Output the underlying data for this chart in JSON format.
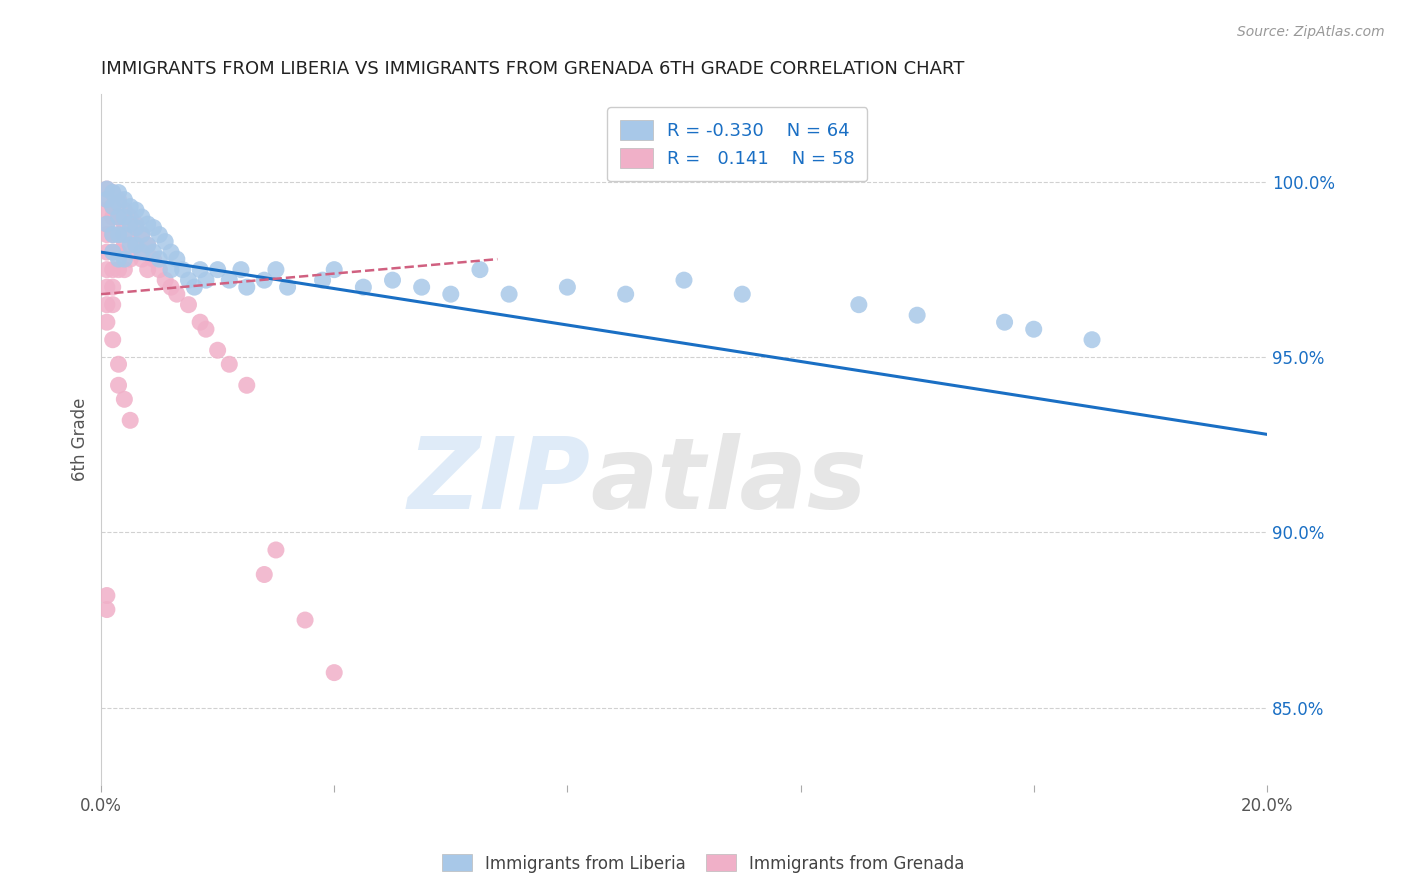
{
  "title": "IMMIGRANTS FROM LIBERIA VS IMMIGRANTS FROM GRENADA 6TH GRADE CORRELATION CHART",
  "source": "Source: ZipAtlas.com",
  "ylabel": "6th Grade",
  "ylabel_right_ticks": [
    "85.0%",
    "90.0%",
    "95.0%",
    "100.0%"
  ],
  "ylabel_right_vals": [
    0.85,
    0.9,
    0.95,
    1.0
  ],
  "legend_liberia": {
    "R": "-0.330",
    "N": "64",
    "color": "#a8c8e8"
  },
  "legend_grenada": {
    "R": "0.141",
    "N": "58",
    "color": "#f0b0c8"
  },
  "liberia_line_color": "#1a6fc4",
  "grenada_line_color": "#d06080",
  "watermark_zip": "ZIP",
  "watermark_atlas": "atlas",
  "background_color": "#ffffff",
  "grid_color": "#cccccc",
  "xlim": [
    0.0,
    0.2
  ],
  "ylim": [
    0.828,
    1.025
  ],
  "liberia_scatter_x": [
    0.001,
    0.001,
    0.001,
    0.002,
    0.002,
    0.002,
    0.002,
    0.003,
    0.003,
    0.003,
    0.003,
    0.003,
    0.004,
    0.004,
    0.004,
    0.004,
    0.005,
    0.005,
    0.005,
    0.006,
    0.006,
    0.006,
    0.007,
    0.007,
    0.007,
    0.008,
    0.008,
    0.009,
    0.009,
    0.01,
    0.01,
    0.011,
    0.012,
    0.012,
    0.013,
    0.014,
    0.015,
    0.016,
    0.017,
    0.018,
    0.02,
    0.022,
    0.024,
    0.025,
    0.028,
    0.03,
    0.032,
    0.038,
    0.04,
    0.045,
    0.05,
    0.055,
    0.06,
    0.065,
    0.07,
    0.08,
    0.09,
    0.1,
    0.11,
    0.13,
    0.14,
    0.155,
    0.16,
    0.17
  ],
  "liberia_scatter_y": [
    0.998,
    0.995,
    0.988,
    0.997,
    0.993,
    0.985,
    0.98,
    0.997,
    0.994,
    0.99,
    0.985,
    0.978,
    0.995,
    0.99,
    0.985,
    0.978,
    0.993,
    0.988,
    0.982,
    0.992,
    0.987,
    0.982,
    0.99,
    0.985,
    0.98,
    0.988,
    0.982,
    0.987,
    0.98,
    0.985,
    0.978,
    0.983,
    0.98,
    0.975,
    0.978,
    0.975,
    0.972,
    0.97,
    0.975,
    0.972,
    0.975,
    0.972,
    0.975,
    0.97,
    0.972,
    0.975,
    0.97,
    0.972,
    0.975,
    0.97,
    0.972,
    0.97,
    0.968,
    0.975,
    0.968,
    0.97,
    0.968,
    0.972,
    0.968,
    0.965,
    0.962,
    0.96,
    0.958,
    0.955
  ],
  "grenada_scatter_x": [
    0.001,
    0.001,
    0.001,
    0.001,
    0.001,
    0.001,
    0.001,
    0.001,
    0.001,
    0.002,
    0.002,
    0.002,
    0.002,
    0.002,
    0.002,
    0.002,
    0.002,
    0.003,
    0.003,
    0.003,
    0.003,
    0.003,
    0.004,
    0.004,
    0.004,
    0.004,
    0.005,
    0.005,
    0.005,
    0.006,
    0.006,
    0.007,
    0.007,
    0.008,
    0.008,
    0.009,
    0.01,
    0.011,
    0.012,
    0.013,
    0.015,
    0.017,
    0.018,
    0.02,
    0.022,
    0.025,
    0.028,
    0.03,
    0.035,
    0.04,
    0.001,
    0.002,
    0.003,
    0.003,
    0.004,
    0.005,
    0.001,
    0.001
  ],
  "grenada_scatter_y": [
    0.998,
    0.995,
    0.992,
    0.988,
    0.985,
    0.98,
    0.975,
    0.97,
    0.965,
    0.997,
    0.993,
    0.99,
    0.985,
    0.98,
    0.975,
    0.97,
    0.965,
    0.995,
    0.99,
    0.985,
    0.98,
    0.975,
    0.992,
    0.988,
    0.982,
    0.975,
    0.99,
    0.985,
    0.978,
    0.988,
    0.982,
    0.985,
    0.978,
    0.982,
    0.975,
    0.978,
    0.975,
    0.972,
    0.97,
    0.968,
    0.965,
    0.96,
    0.958,
    0.952,
    0.948,
    0.942,
    0.888,
    0.895,
    0.875,
    0.86,
    0.96,
    0.955,
    0.948,
    0.942,
    0.938,
    0.932,
    0.882,
    0.878
  ],
  "liberia_trendline_x": [
    0.0,
    0.2
  ],
  "liberia_trendline_y": [
    0.98,
    0.928
  ],
  "grenada_trendline_x": [
    0.0,
    0.068
  ],
  "grenada_trendline_y": [
    0.968,
    0.978
  ]
}
